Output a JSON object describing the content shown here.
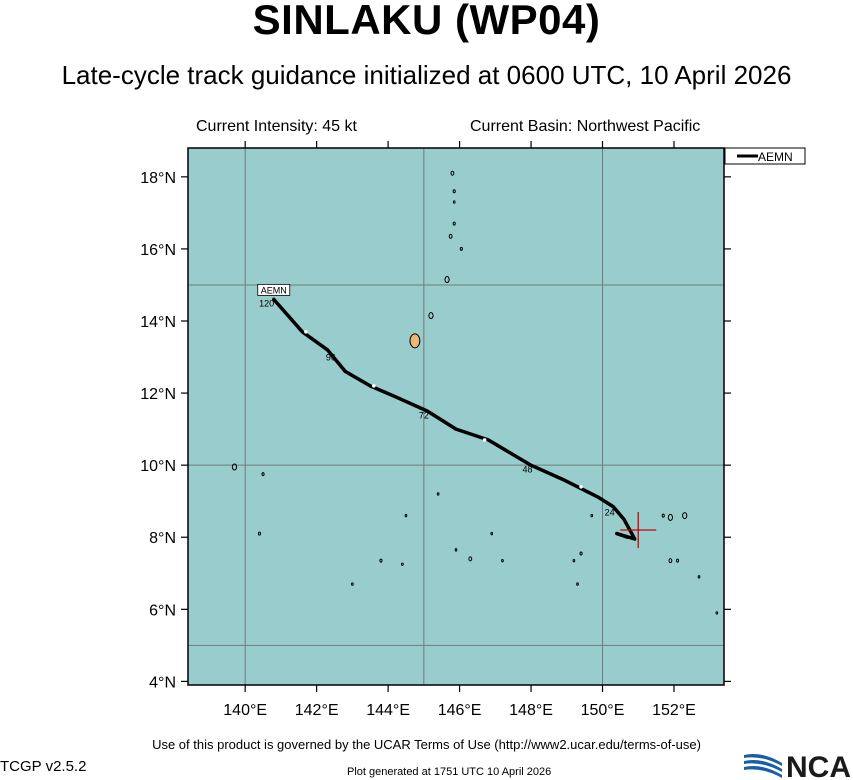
{
  "header": {
    "title": "SINLAKU (WP04)",
    "subtitle": "Late-cycle track guidance initialized at 0600 UTC, 10 April 2026",
    "intensity": "Current Intensity: 45 kt",
    "basin": "Current Basin: Northwest Pacific"
  },
  "map": {
    "ocean_color": "#99cccc",
    "land_color": "#e8b878",
    "lon_range": [
      138.4,
      153.4
    ],
    "lat_range": [
      3.9,
      18.8
    ],
    "lon_ticks": [
      140,
      142,
      144,
      146,
      148,
      150,
      152
    ],
    "lat_ticks": [
      4,
      6,
      8,
      10,
      12,
      14,
      16,
      18
    ],
    "lon_tick_labels": [
      "140°E",
      "142°E",
      "144°E",
      "146°E",
      "148°E",
      "150°E",
      "152°E"
    ],
    "lat_tick_labels": [
      "4°N",
      "6°N",
      "8°N",
      "10°N",
      "12°N",
      "14°N",
      "16°N",
      "18°N"
    ],
    "grid_lons": [
      140,
      145,
      150
    ],
    "grid_lats": [
      5,
      10,
      15
    ],
    "current_position": {
      "lon": 151.0,
      "lat": 8.2,
      "color": "#cc0000"
    },
    "legend": {
      "label": "AEMN"
    },
    "track": {
      "name": "AEMN",
      "color": "#000000",
      "points": [
        {
          "lon": 150.7,
          "lat": 8.0
        },
        {
          "lon": 150.4,
          "lat": 8.1
        },
        {
          "lon": 150.9,
          "lat": 7.95
        },
        {
          "lon": 150.6,
          "lat": 8.5
        },
        {
          "lon": 150.3,
          "lat": 8.85
        },
        {
          "lon": 149.9,
          "lat": 9.1
        },
        {
          "lon": 148.9,
          "lat": 9.6
        },
        {
          "lon": 148.0,
          "lat": 10.0
        },
        {
          "lon": 146.8,
          "lat": 10.7
        },
        {
          "lon": 145.9,
          "lat": 11.0
        },
        {
          "lon": 145.1,
          "lat": 11.5
        },
        {
          "lon": 144.2,
          "lat": 11.9
        },
        {
          "lon": 143.5,
          "lat": 12.2
        },
        {
          "lon": 142.8,
          "lat": 12.6
        },
        {
          "lon": 142.3,
          "lat": 13.2
        },
        {
          "lon": 141.6,
          "lat": 13.7
        },
        {
          "lon": 140.8,
          "lat": 14.6
        }
      ],
      "markers": [
        {
          "lon": 149.4,
          "lat": 9.4
        },
        {
          "lon": 146.7,
          "lat": 10.7
        },
        {
          "lon": 143.6,
          "lat": 12.2
        },
        {
          "lon": 141.7,
          "lat": 13.7
        }
      ],
      "hour_labels": [
        {
          "text": "24",
          "lon": 150.2,
          "lat": 8.6
        },
        {
          "text": "48",
          "lon": 147.9,
          "lat": 9.8
        },
        {
          "text": "72",
          "lon": 145.0,
          "lat": 11.3
        },
        {
          "text": "96",
          "lon": 142.4,
          "lat": 12.9
        },
        {
          "text": "120",
          "lon": 140.6,
          "lat": 14.4
        }
      ],
      "end_label": {
        "text": "AEMN",
        "lon": 140.8,
        "lat": 14.85
      }
    },
    "islands": [
      {
        "lon": 144.75,
        "lat": 13.45,
        "size": 7
      },
      {
        "lon": 145.2,
        "lat": 14.15,
        "size": 3
      },
      {
        "lon": 145.65,
        "lat": 15.15,
        "size": 3
      },
      {
        "lon": 145.75,
        "lat": 16.35,
        "size": 2
      },
      {
        "lon": 145.8,
        "lat": 18.1,
        "size": 2
      },
      {
        "lon": 145.85,
        "lat": 17.6,
        "size": 1.5
      },
      {
        "lon": 145.85,
        "lat": 16.7,
        "size": 1.5
      },
      {
        "lon": 146.05,
        "lat": 16.0,
        "size": 1.5
      },
      {
        "lon": 145.85,
        "lat": 17.3,
        "size": 1.2
      },
      {
        "lon": 139.7,
        "lat": 9.95,
        "size": 3
      },
      {
        "lon": 140.5,
        "lat": 9.75,
        "size": 1.5
      },
      {
        "lon": 140.4,
        "lat": 8.1,
        "size": 1.5
      },
      {
        "lon": 143.8,
        "lat": 7.35,
        "size": 1.5
      },
      {
        "lon": 144.4,
        "lat": 7.25,
        "size": 1.2
      },
      {
        "lon": 144.5,
        "lat": 8.6,
        "size": 1.2
      },
      {
        "lon": 143.0,
        "lat": 6.7,
        "size": 1.2
      },
      {
        "lon": 145.4,
        "lat": 9.2,
        "size": 1.2
      },
      {
        "lon": 145.9,
        "lat": 7.65,
        "size": 1.2
      },
      {
        "lon": 146.3,
        "lat": 7.4,
        "size": 2
      },
      {
        "lon": 146.9,
        "lat": 8.1,
        "size": 1.2
      },
      {
        "lon": 147.2,
        "lat": 7.35,
        "size": 1.2
      },
      {
        "lon": 149.2,
        "lat": 7.35,
        "size": 1.2
      },
      {
        "lon": 149.4,
        "lat": 7.55,
        "size": 1.5
      },
      {
        "lon": 149.7,
        "lat": 8.6,
        "size": 1.2
      },
      {
        "lon": 149.3,
        "lat": 6.7,
        "size": 1.2
      },
      {
        "lon": 151.7,
        "lat": 8.6,
        "size": 1.5
      },
      {
        "lon": 151.9,
        "lat": 8.55,
        "size": 3
      },
      {
        "lon": 152.3,
        "lat": 8.6,
        "size": 3
      },
      {
        "lon": 151.9,
        "lat": 7.35,
        "size": 2
      },
      {
        "lon": 152.1,
        "lat": 7.35,
        "size": 1.5
      },
      {
        "lon": 152.7,
        "lat": 6.9,
        "size": 1.2
      },
      {
        "lon": 153.2,
        "lat": 5.9,
        "size": 1.2
      }
    ]
  },
  "footer": {
    "terms": "Use of this product is governed by the UCAR Terms of Use (http://www2.ucar.edu/terms-of-use)",
    "version": "TCGP v2.5.2",
    "generated": "Plot generated at 1751 UTC   10 April 2026",
    "logo_text": "NCAR"
  }
}
